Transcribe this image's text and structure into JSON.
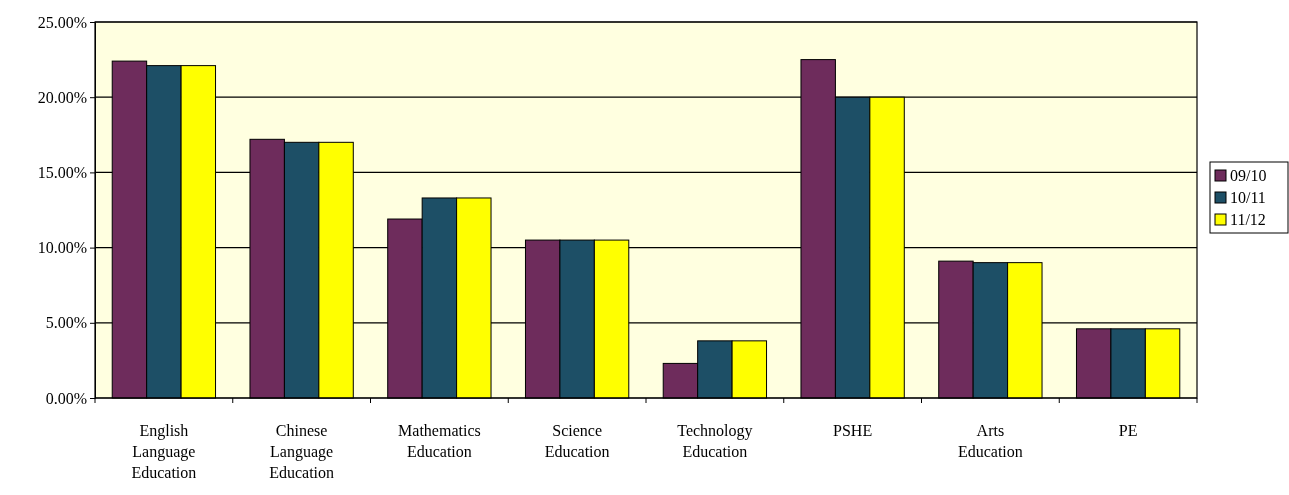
{
  "chart_data": {
    "type": "bar",
    "categories": [
      "English Language Education",
      "Chinese Language Education",
      "Mathematics Education",
      "Science Education",
      "Technology Education",
      "PSHE",
      "Arts Education",
      "PE"
    ],
    "series": [
      {
        "name": "09/10",
        "color": "#6e2c5c",
        "values": [
          22.4,
          17.2,
          11.9,
          10.5,
          2.3,
          22.5,
          9.1,
          4.6
        ]
      },
      {
        "name": "10/11",
        "color": "#1d4f66",
        "values": [
          22.1,
          17.0,
          13.3,
          10.5,
          3.8,
          20.0,
          9.0,
          4.6
        ]
      },
      {
        "name": "11/12",
        "color": "#ffff00",
        "values": [
          22.1,
          17.0,
          13.3,
          10.5,
          3.8,
          20.0,
          9.0,
          4.6
        ]
      }
    ],
    "ylim": [
      0,
      25
    ],
    "yticks": [
      {
        "value": 0,
        "label": "0.00%"
      },
      {
        "value": 5,
        "label": "5.00%"
      },
      {
        "value": 10,
        "label": "10.00%"
      },
      {
        "value": 15,
        "label": "15.00%"
      },
      {
        "value": 20,
        "label": "20.00%"
      },
      {
        "value": 25,
        "label": "25.00%"
      }
    ],
    "grid": "y",
    "legend": "right"
  }
}
